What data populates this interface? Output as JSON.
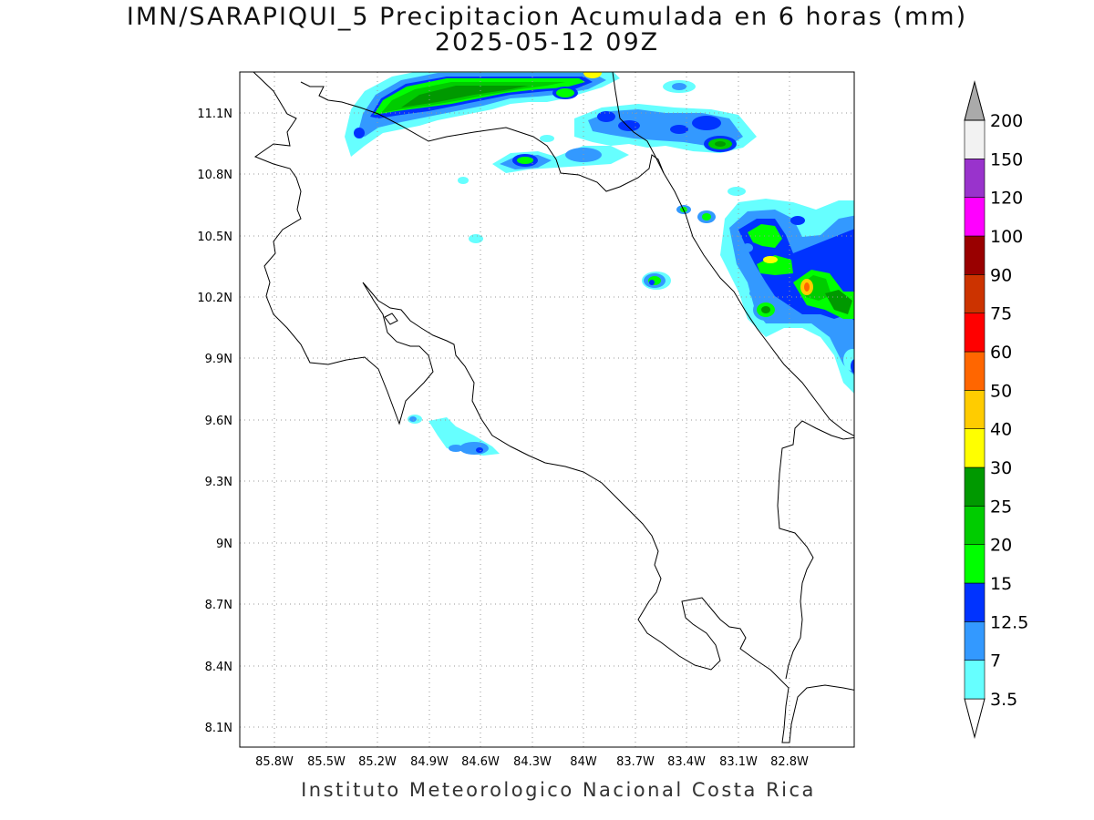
{
  "title": {
    "line1": "IMN/SARAPIQUI_5 Precipitacion Acumulada en 6 horas (mm)",
    "line2": "2025-05-12 09Z"
  },
  "footer": "Instituto Meteorologico Nacional Costa Rica",
  "map": {
    "lon_range": [
      -86.0,
      -82.3
    ],
    "lat_range": [
      8.0,
      11.3
    ],
    "lon_ticks": [
      "85.8W",
      "85.5W",
      "85.2W",
      "84.9W",
      "84.6W",
      "84.3W",
      "84W",
      "83.7W",
      "83.4W",
      "83.1W",
      "82.8W"
    ],
    "lat_ticks": [
      "11.1N",
      "10.8N",
      "10.5N",
      "10.2N",
      "9.9N",
      "9.6N",
      "9.3N",
      "9N",
      "8.7N",
      "8.4N",
      "8.1N"
    ],
    "grid": "dotted"
  },
  "colorbar": {
    "levels": [
      "3.5",
      "7",
      "12.5",
      "15",
      "20",
      "25",
      "30",
      "40",
      "50",
      "60",
      "75",
      "90",
      "100",
      "120",
      "150",
      "200"
    ],
    "colors": [
      "#66ffff",
      "#3399ff",
      "#0033ff",
      "#00ff00",
      "#00cc00",
      "#009900",
      "#ffff00",
      "#ffcc00",
      "#ff6600",
      "#ff0000",
      "#cc3300",
      "#990000",
      "#ff00ff",
      "#9933cc",
      "#f2f2f2",
      "#aaaaaa"
    ],
    "under_color": "#ffffff",
    "over_color": "#aaaaaa"
  }
}
